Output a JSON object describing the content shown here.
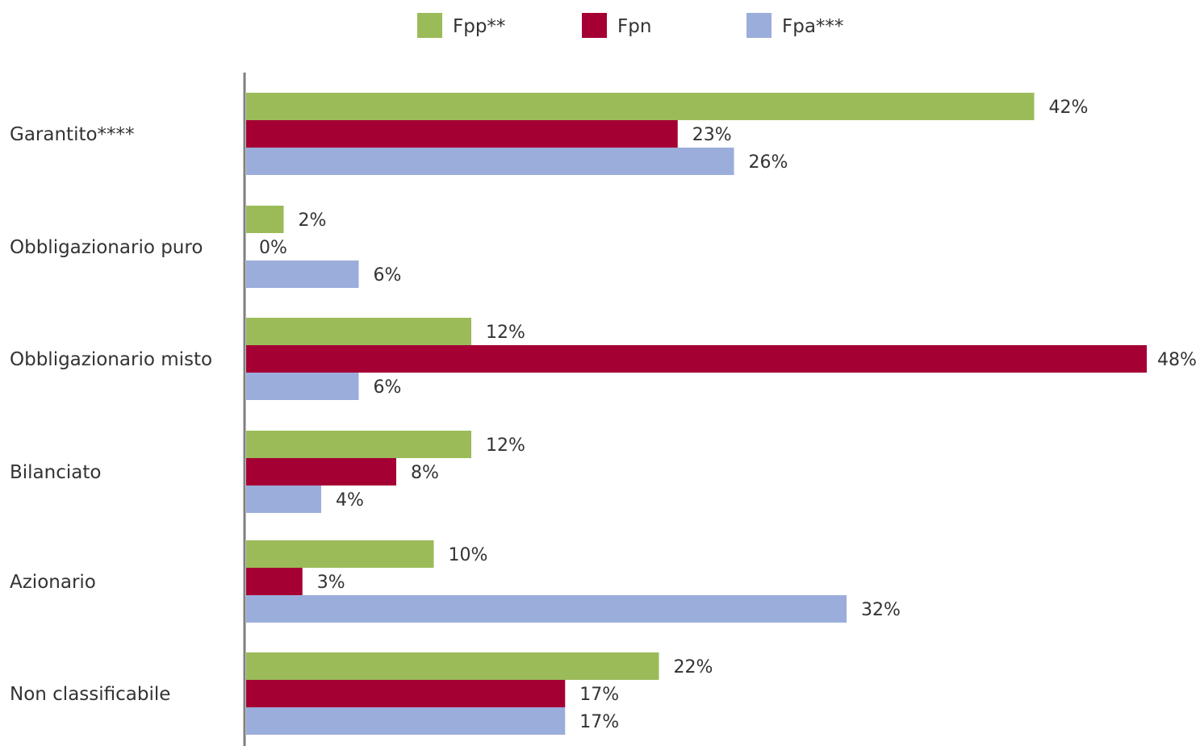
{
  "chart_data": {
    "type": "bar",
    "orientation": "horizontal",
    "title": "",
    "xlabel": "",
    "ylabel": "",
    "legend_position": "top",
    "grid": false,
    "xlim": [
      0,
      48
    ],
    "categories": [
      "Garantito****",
      "Obbligazionario puro",
      "Obbligazionario misto",
      "Bilanciato",
      "Azionario",
      "Non classificabile"
    ],
    "series": [
      {
        "name": "Fpp**",
        "color": "#9BBB59",
        "values": [
          42,
          2,
          12,
          12,
          10,
          22
        ],
        "labels": [
          "42%",
          "2%",
          "12%",
          "12%",
          "10%",
          "22%"
        ]
      },
      {
        "name": "Fpn",
        "color": "#A50034",
        "values": [
          23,
          0,
          48,
          8,
          3,
          17
        ],
        "labels": [
          "23%",
          "0%",
          "48%",
          "8%",
          "3%",
          "17%"
        ]
      },
      {
        "name": "Fpa***",
        "color": "#9BADDB",
        "values": [
          26,
          6,
          6,
          4,
          32,
          17
        ],
        "labels": [
          "26%",
          "6%",
          "6%",
          "4%",
          "32%",
          "17%"
        ]
      }
    ]
  }
}
